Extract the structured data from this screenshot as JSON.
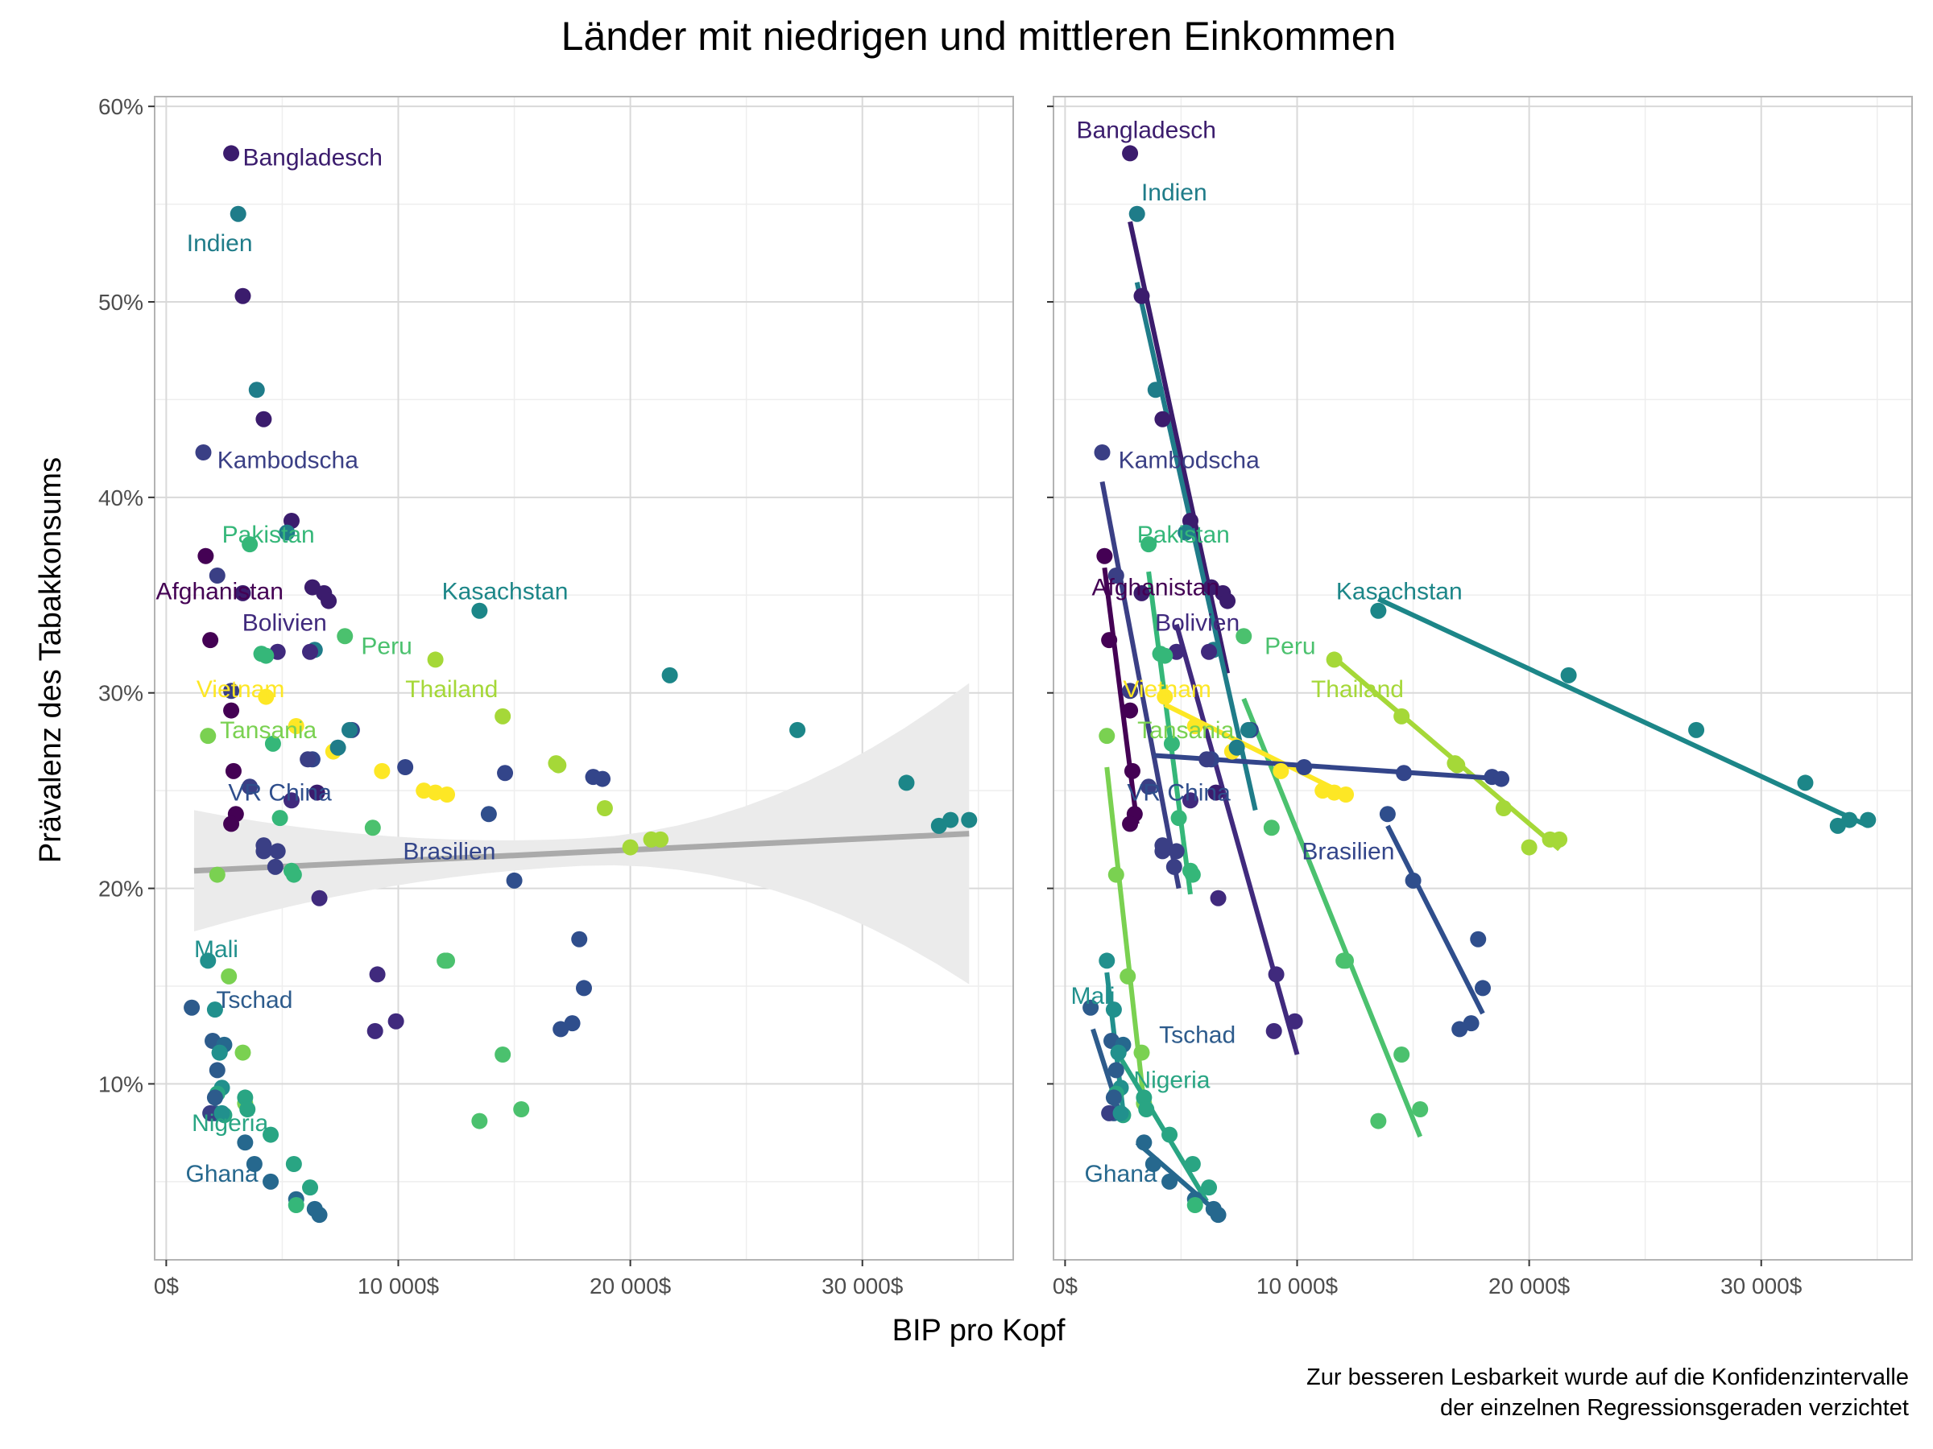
{
  "chart_data": {
    "type": "scatter",
    "title": "Länder mit niedrigen und mittleren Einkommen",
    "xlabel": "BIP pro Kopf",
    "ylabel": "Prävalenz des Tabakkonsums",
    "caption_lines": [
      "Zur besseren Lesbarkeit wurde auf die Konfidenzintervalle",
      "der einzelnen Regressionsgeraden verzichtet"
    ],
    "x_ticks": [
      {
        "value": 0,
        "label": "0$"
      },
      {
        "value": 10000,
        "label": "10 000$"
      },
      {
        "value": 20000,
        "label": "20 000$"
      },
      {
        "value": 30000,
        "label": "30 000$"
      }
    ],
    "y_ticks": [
      {
        "value": 0.1,
        "label": "10%"
      },
      {
        "value": 0.2,
        "label": "20%"
      },
      {
        "value": 0.3,
        "label": "30%"
      },
      {
        "value": 0.4,
        "label": "40%"
      },
      {
        "value": 0.5,
        "label": "50%"
      },
      {
        "value": 0.6,
        "label": "60%"
      }
    ],
    "xlim": [
      -500,
      36500
    ],
    "ylim": [
      0.01,
      0.605
    ],
    "grid": true,
    "legend": "none",
    "colors": {
      "afghanistan": "#440154",
      "bangladesch": "#3b1c6d",
      "bolivien": "#402a7d",
      "kambodscha": "#3a3f85",
      "brasilien": "#33458a",
      "vrchina": "#2f4e8c",
      "tschad": "#2d5b8c",
      "ghana": "#26688e",
      "indien": "#1f7c89",
      "kasachstan": "#1c8688",
      "mali": "#21908d",
      "nigeria": "#29a583",
      "pakistan": "#35b779",
      "peru": "#4bc16e",
      "tansania": "#7ad151",
      "thailand": "#a5d838",
      "vietnam": "#fde725",
      "overall_line": "#aaaaaa",
      "overall_ribbon": "#ebebeb"
    },
    "overall_fit": {
      "x": [
        1200,
        34600
      ],
      "y": [
        0.209,
        0.228
      ],
      "band_half_width_at_ends": [
        0.031,
        0.077
      ],
      "band_half_width_center": 0.007
    },
    "series": [
      {
        "name": "Bangladesch",
        "color_key": "bangladesch",
        "x": [
          2800,
          3300,
          4200,
          5400,
          6300,
          6800,
          7000
        ],
        "y": [
          0.576,
          0.503,
          0.44,
          0.388,
          0.354,
          0.351,
          0.347
        ],
        "fit": {
          "x": [
            2800,
            7000
          ],
          "y": [
            0.541,
            0.31
          ]
        },
        "label_left": {
          "x": 3300,
          "y": 0.574,
          "anchor": "start"
        },
        "label_right": {
          "x": 3500,
          "y": 0.588,
          "anchor": "middle"
        }
      },
      {
        "name": "Indien",
        "color_key": "indien",
        "x": [
          3100,
          3900,
          5200,
          6400
        ],
        "y": [
          0.545,
          0.455,
          0.382,
          0.322
        ],
        "fit": {
          "x": [
            3100,
            8200
          ],
          "y": [
            0.51,
            0.24
          ]
        },
        "label_left": {
          "x": 2300,
          "y": 0.53,
          "anchor": "middle"
        },
        "label_right": {
          "x": 4700,
          "y": 0.556,
          "anchor": "middle"
        }
      },
      {
        "name": "Kambodscha",
        "color_key": "kambodscha",
        "x": [
          1600,
          2200,
          2800,
          3600,
          4200,
          4700
        ],
        "y": [
          0.423,
          0.36,
          0.301,
          0.252,
          0.219,
          0.211
        ],
        "fit": {
          "x": [
            1600,
            4900
          ],
          "y": [
            0.408,
            0.2
          ]
        },
        "label_left": {
          "x": 2200,
          "y": 0.419,
          "anchor": "start"
        },
        "label_right": {
          "x": 2300,
          "y": 0.419,
          "anchor": "start"
        }
      },
      {
        "name": "Pakistan",
        "color_key": "pakistan",
        "x": [
          3600,
          4100,
          4600,
          5400
        ],
        "y": [
          0.376,
          0.32,
          0.274,
          0.209
        ],
        "fit": {
          "x": [
            3600,
            5400
          ],
          "y": [
            0.362,
            0.197
          ]
        },
        "label_left": {
          "x": 4400,
          "y": 0.381,
          "anchor": "middle"
        },
        "label_right": {
          "x": 5100,
          "y": 0.381,
          "anchor": "middle"
        }
      },
      {
        "name": "Afghanistan",
        "color_key": "afghanistan",
        "x": [
          1700,
          1900,
          2800,
          2900,
          3000
        ],
        "y": [
          0.37,
          0.327,
          0.291,
          0.26,
          0.238
        ],
        "fit": {
          "x": [
            1700,
            3100
          ],
          "y": [
            0.364,
            0.233
          ]
        },
        "label_left": {
          "x": 2300,
          "y": 0.352,
          "anchor": "middle"
        },
        "label_right": {
          "x": 3900,
          "y": 0.354,
          "anchor": "middle"
        }
      },
      {
        "name": "Kasachstan",
        "color_key": "kasachstan",
        "x": [
          13500,
          21700,
          27200,
          31900,
          33300,
          33800,
          34600
        ],
        "y": [
          0.342,
          0.309,
          0.281,
          0.254,
          0.232,
          0.235,
          0.235
        ],
        "fit": {
          "x": [
            13500,
            34600
          ],
          "y": [
            0.348,
            0.232
          ]
        },
        "label_left": {
          "x": 14600,
          "y": 0.352,
          "anchor": "middle"
        },
        "label_right": {
          "x": 14400,
          "y": 0.352,
          "anchor": "middle"
        }
      },
      {
        "name": "Bolivien",
        "color_key": "bolivien",
        "x": [
          4800,
          5400,
          6600,
          9100,
          9900
        ],
        "y": [
          0.321,
          0.245,
          0.195,
          0.156,
          0.132
        ],
        "fit": {
          "x": [
            4800,
            10000
          ],
          "y": [
            0.335,
            0.115
          ]
        },
        "label_left": {
          "x": 5100,
          "y": 0.336,
          "anchor": "middle"
        },
        "label_right": {
          "x": 5700,
          "y": 0.336,
          "anchor": "middle"
        }
      },
      {
        "name": "Peru",
        "color_key": "peru",
        "x": [
          7700,
          8900,
          12000,
          14500,
          15300
        ],
        "y": [
          0.329,
          0.231,
          0.163,
          0.115,
          0.087
        ],
        "fit": {
          "x": [
            7700,
            15300
          ],
          "y": [
            0.297,
            0.073
          ]
        },
        "label_left": {
          "x": 8400,
          "y": 0.324,
          "anchor": "start"
        },
        "label_right": {
          "x": 8600,
          "y": 0.324,
          "anchor": "start"
        }
      },
      {
        "name": "Vietnam",
        "color_key": "vietnam",
        "x": [
          4300,
          5600,
          7200,
          9300,
          11100,
          11600,
          12100
        ],
        "y": [
          0.298,
          0.283,
          0.27,
          0.26,
          0.25,
          0.249,
          0.248
        ],
        "fit": {
          "x": [
            4300,
            12100
          ],
          "y": [
            0.294,
            0.248
          ]
        },
        "label_left": {
          "x": 3200,
          "y": 0.302,
          "anchor": "middle"
        },
        "label_right": {
          "x": 4400,
          "y": 0.302,
          "anchor": "middle"
        }
      },
      {
        "name": "Thailand",
        "color_key": "thailand",
        "x": [
          11600,
          14500,
          16800,
          18900,
          20000,
          20900,
          21300
        ],
        "y": [
          0.317,
          0.288,
          0.264,
          0.241,
          0.221,
          0.225,
          0.225
        ],
        "fit": {
          "x": [
            11600,
            21300
          ],
          "y": [
            0.318,
            0.22
          ]
        },
        "label_left": {
          "x": 12300,
          "y": 0.302,
          "anchor": "middle"
        },
        "label_right": {
          "x": 12600,
          "y": 0.302,
          "anchor": "middle"
        }
      },
      {
        "name": "Tansania",
        "color_key": "tansania",
        "x": [
          1800,
          2200,
          2700,
          3300,
          3400
        ],
        "y": [
          0.278,
          0.207,
          0.155,
          0.116,
          0.09
        ],
        "fit": {
          "x": [
            1800,
            3400
          ],
          "y": [
            0.262,
            0.09
          ]
        },
        "label_left": {
          "x": 4400,
          "y": 0.281,
          "anchor": "middle"
        },
        "label_right": {
          "x": 5200,
          "y": 0.281,
          "anchor": "middle"
        }
      },
      {
        "name": "Brasilien",
        "color_key": "brasilien",
        "x": [
          6300,
          8000,
          10300,
          14600,
          18400,
          18800
        ],
        "y": [
          0.266,
          0.281,
          0.262,
          0.259,
          0.257,
          0.256
        ],
        "fit": {
          "x": [
            3800,
            18900
          ],
          "y": [
            0.268,
            0.256
          ]
        },
        "label_left": {
          "x": 12200,
          "y": 0.219,
          "anchor": "middle"
        },
        "label_right": {
          "x": 12200,
          "y": 0.219,
          "anchor": "middle"
        }
      },
      {
        "name": "VR China",
        "color_key": "vrchina",
        "x": [
          13900,
          15000,
          17800,
          18000,
          17000,
          17500
        ],
        "y": [
          0.238,
          0.204,
          0.174,
          0.149,
          0.128,
          0.131
        ],
        "fit": {
          "x": [
            13900,
            18000
          ],
          "y": [
            0.232,
            0.136
          ]
        },
        "label_left": {
          "x": 4900,
          "y": 0.249,
          "anchor": "middle"
        },
        "label_right": {
          "x": 4900,
          "y": 0.249,
          "anchor": "middle"
        }
      },
      {
        "name": "Mali",
        "color_key": "mali",
        "x": [
          1800,
          2100,
          2300,
          2400
        ],
        "y": [
          0.163,
          0.138,
          0.116,
          0.098
        ],
        "fit": {
          "x": [
            1800,
            2500
          ],
          "y": [
            0.157,
            0.086
          ]
        },
        "label_left": {
          "x": 1200,
          "y": 0.169,
          "anchor": "start"
        },
        "label_right": {
          "x": 1200,
          "y": 0.145,
          "anchor": "middle"
        }
      },
      {
        "name": "Tschad",
        "color_key": "tschad",
        "x": [
          1100,
          2000,
          2200,
          2100
        ],
        "y": [
          0.139,
          0.122,
          0.107,
          0.085
        ],
        "fit": {
          "x": [
            1200,
            2300
          ],
          "y": [
            0.128,
            0.087
          ]
        },
        "label_left": {
          "x": 3800,
          "y": 0.143,
          "anchor": "middle"
        },
        "label_right": {
          "x": 5700,
          "y": 0.125,
          "anchor": "middle"
        }
      },
      {
        "name": "Nigeria",
        "color_key": "nigeria",
        "x": [
          2500,
          3400,
          3500,
          4500
        ],
        "y": [
          0.084,
          0.093,
          0.087,
          0.074
        ],
        "fit": {
          "x": [
            2300,
            6100
          ],
          "y": [
            0.115,
            0.04
          ]
        },
        "label_left": {
          "x": 1100,
          "y": 0.08,
          "anchor": "start"
        },
        "label_right": {
          "x": 4600,
          "y": 0.102,
          "anchor": "middle"
        }
      },
      {
        "name": "Ghana",
        "color_key": "ghana",
        "x": [
          3400,
          3800,
          4500,
          5600,
          6400
        ],
        "y": [
          0.07,
          0.059,
          0.05,
          0.041,
          0.036
        ],
        "fit": {
          "x": [
            3100,
            6400
          ],
          "y": [
            0.07,
            0.036
          ]
        },
        "label_left": {
          "x": 2400,
          "y": 0.054,
          "anchor": "middle"
        },
        "label_right": {
          "x": 2400,
          "y": 0.054,
          "anchor": "middle"
        }
      }
    ],
    "extra_points": [
      {
        "x": 3300,
        "y": 0.351,
        "color_key": "bangladesch"
      },
      {
        "x": 6200,
        "y": 0.321,
        "color_key": "bolivien"
      },
      {
        "x": 6100,
        "y": 0.266,
        "color_key": "kambodscha"
      },
      {
        "x": 6500,
        "y": 0.249,
        "color_key": "bangladesch"
      },
      {
        "x": 7400,
        "y": 0.272,
        "color_key": "indien"
      },
      {
        "x": 7900,
        "y": 0.281,
        "color_key": "indien"
      },
      {
        "x": 9000,
        "y": 0.127,
        "color_key": "bolivien"
      },
      {
        "x": 2500,
        "y": 0.12,
        "color_key": "ghana"
      },
      {
        "x": 2300,
        "y": 0.116,
        "color_key": "mali"
      },
      {
        "x": 2200,
        "y": 0.095,
        "color_key": "nigeria"
      },
      {
        "x": 2100,
        "y": 0.093,
        "color_key": "tschad"
      },
      {
        "x": 1900,
        "y": 0.085,
        "color_key": "kambodscha"
      },
      {
        "x": 2400,
        "y": 0.085,
        "color_key": "mali"
      },
      {
        "x": 5500,
        "y": 0.059,
        "color_key": "nigeria"
      },
      {
        "x": 6200,
        "y": 0.047,
        "color_key": "nigeria"
      },
      {
        "x": 5600,
        "y": 0.038,
        "color_key": "pakistan"
      },
      {
        "x": 4900,
        "y": 0.236,
        "color_key": "pakistan"
      },
      {
        "x": 5500,
        "y": 0.207,
        "color_key": "pakistan"
      },
      {
        "x": 4300,
        "y": 0.319,
        "color_key": "pakistan"
      },
      {
        "x": 4200,
        "y": 0.222,
        "color_key": "kambodscha"
      },
      {
        "x": 4800,
        "y": 0.219,
        "color_key": "kambodscha"
      },
      {
        "x": 2800,
        "y": 0.233,
        "color_key": "afghanistan"
      },
      {
        "x": 12100,
        "y": 0.163,
        "color_key": "peru"
      },
      {
        "x": 13500,
        "y": 0.081,
        "color_key": "peru"
      },
      {
        "x": 16900,
        "y": 0.263,
        "color_key": "thailand"
      },
      {
        "x": 6600,
        "y": 0.033,
        "color_key": "ghana"
      }
    ]
  }
}
